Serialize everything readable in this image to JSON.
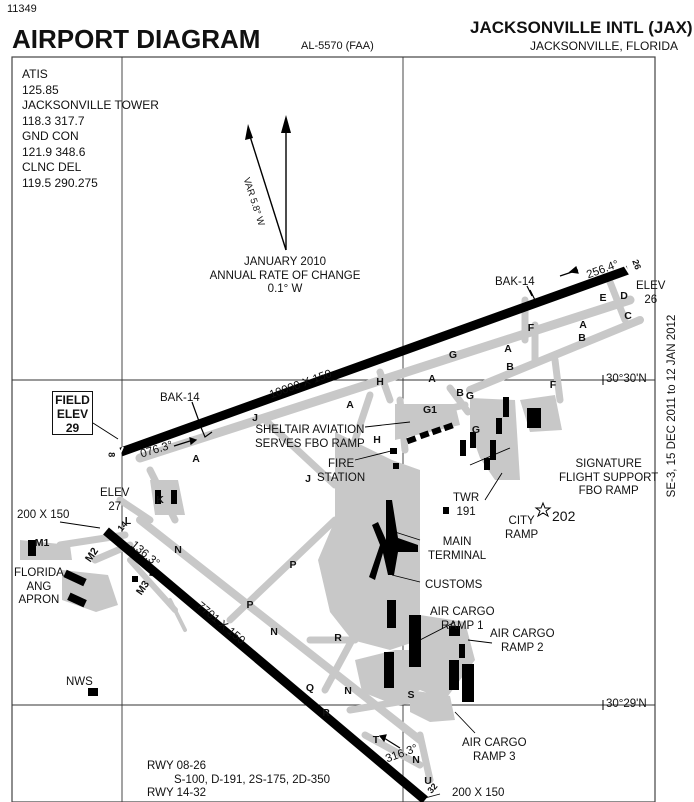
{
  "header": {
    "chart_number": "11349",
    "title": "AIRPORT DIAGRAM",
    "document_id": "AL-5570 (FAA)",
    "airport": "JACKSONVILLE INTL (JAX)",
    "location": "JACKSONVILLE, FLORIDA"
  },
  "effective": "SE-3, 15 DEC 2011 to 12 JAN 2012",
  "frequencies": {
    "atis_label": "ATIS",
    "atis": "125.85",
    "tower_label": "JACKSONVILLE TOWER",
    "tower": "118.3  317.7",
    "gnd_label": "GND CON",
    "gnd": "121.9  348.6",
    "clnc_label": "CLNC DEL",
    "clnc": "119.5  290.275"
  },
  "magnetic": {
    "variation": "VAR 5.8° W",
    "date": "JANUARY 2010",
    "rate_label": "ANNUAL RATE OF CHANGE",
    "rate": "0.1° W"
  },
  "coordinates": {
    "lat1": "30°30'N",
    "lat2": "30°29'N"
  },
  "field_elev": {
    "label1": "FIELD",
    "label2": "ELEV",
    "value": "29"
  },
  "runways": {
    "rwy_08_26_dims": "10000 X 150",
    "rwy_14_32_dims": "7701 X 150",
    "rwy14_width": "200  X 150",
    "rwy32_width": "200  X 150",
    "hdg_08": "076.3°",
    "hdg_26": "256.4°",
    "hdg_14": "136.3°",
    "hdg_32": "316.3°",
    "end_08": "8",
    "end_26": "26",
    "end_14": "14",
    "end_32": "32",
    "elev26_label": "ELEV",
    "elev26": "26",
    "elev27_label": "ELEV",
    "elev27": "27",
    "bak_west": "BAK-14",
    "bak_east": "BAK-14"
  },
  "labels": {
    "sheltair1": "SHELTAIR AVIATION",
    "sheltair2": "SERVES FBO RAMP",
    "fire1": "FIRE",
    "fire2": "STATION",
    "twr1": "TWR",
    "twr2": "191",
    "main1": "MAIN",
    "main2": "TERMINAL",
    "customs": "CUSTOMS",
    "sig1": "SIGNATURE",
    "sig2": "FLIGHT SUPPORT",
    "sig3": "FBO RAMP",
    "city1": "CITY",
    "city2": "RAMP",
    "obst": "202",
    "ac1_1": "AIR CARGO",
    "ac1_2": "RAMP 1",
    "ac2_1": "AIR CARGO",
    "ac2_2": "RAMP 2",
    "ac3_1": "AIR CARGO",
    "ac3_2": "RAMP 3",
    "ang1": "FLORIDA",
    "ang2": "ANG",
    "ang3": "APRON",
    "nws": "NWS"
  },
  "notes": {
    "rwy1": "RWY 08-26",
    "rwy1_strength": "S-100, D-191, 2S-175, 2D-350",
    "rwy2": "RWY 14-32"
  },
  "taxiways": {
    "A": "A",
    "B": "B",
    "C": "C",
    "D": "D",
    "E": "E",
    "F": "F",
    "G": "G",
    "G1": "G1",
    "H": "H",
    "J": "J",
    "K": "K",
    "L": "L",
    "M1": "M1",
    "M2": "M2",
    "M3": "M3",
    "N": "N",
    "P": "P",
    "Q": "Q",
    "R": "R",
    "S": "S",
    "T": "T",
    "U": "U"
  }
}
